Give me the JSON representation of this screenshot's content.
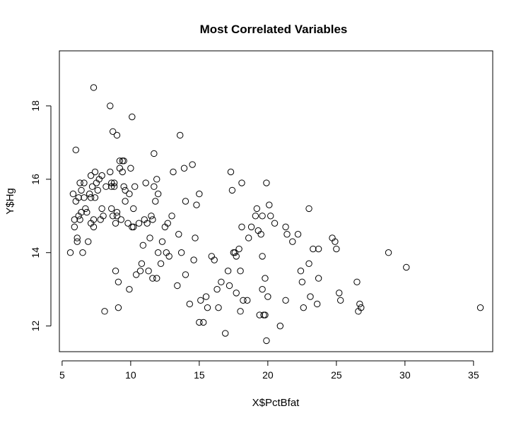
{
  "chart_data": {
    "type": "scatter",
    "title": "Most Correlated Variables",
    "xlabel": "X$PctBfat",
    "ylabel": "Y$Hg",
    "xlim": [
      4.8,
      36.4
    ],
    "ylim": [
      11.3,
      19.5
    ],
    "xticks": [
      5,
      10,
      15,
      20,
      25,
      30,
      35
    ],
    "yticks": [
      12,
      14,
      16,
      18
    ],
    "grid": false,
    "legend": "none",
    "marker": "open-circle",
    "color": "#000000",
    "points": [
      [
        5.6,
        14.0
      ],
      [
        5.8,
        15.6
      ],
      [
        5.9,
        14.9
      ],
      [
        5.9,
        14.7
      ],
      [
        6.0,
        16.8
      ],
      [
        6.0,
        15.4
      ],
      [
        6.1,
        14.4
      ],
      [
        6.1,
        14.3
      ],
      [
        6.2,
        15.0
      ],
      [
        6.2,
        15.5
      ],
      [
        6.3,
        15.9
      ],
      [
        6.3,
        14.9
      ],
      [
        6.4,
        15.7
      ],
      [
        6.4,
        15.1
      ],
      [
        6.5,
        14.0
      ],
      [
        6.6,
        15.5
      ],
      [
        6.6,
        15.9
      ],
      [
        6.7,
        15.2
      ],
      [
        6.8,
        15.1
      ],
      [
        6.9,
        14.3
      ],
      [
        7.0,
        15.6
      ],
      [
        7.1,
        14.8
      ],
      [
        7.1,
        15.5
      ],
      [
        7.1,
        16.1
      ],
      [
        7.2,
        15.8
      ],
      [
        7.3,
        14.9
      ],
      [
        7.3,
        14.7
      ],
      [
        7.4,
        16.2
      ],
      [
        7.4,
        15.5
      ],
      [
        7.5,
        15.9
      ],
      [
        7.6,
        15.7
      ],
      [
        7.7,
        16.0
      ],
      [
        7.8,
        14.9
      ],
      [
        7.9,
        15.2
      ],
      [
        7.9,
        16.1
      ],
      [
        8.0,
        15.0
      ],
      [
        8.1,
        12.4
      ],
      [
        8.2,
        15.8
      ],
      [
        7.3,
        18.5
      ],
      [
        8.5,
        18.0
      ],
      [
        8.5,
        16.2
      ],
      [
        8.6,
        15.2
      ],
      [
        8.6,
        15.9
      ],
      [
        8.6,
        15.8
      ],
      [
        8.7,
        15.0
      ],
      [
        8.7,
        17.3
      ],
      [
        8.8,
        15.9
      ],
      [
        8.8,
        15.8
      ],
      [
        8.9,
        14.8
      ],
      [
        8.9,
        13.5
      ],
      [
        9.0,
        17.2
      ],
      [
        9.0,
        15.1
      ],
      [
        9.0,
        15.0
      ],
      [
        9.1,
        13.2
      ],
      [
        9.1,
        12.5
      ],
      [
        9.2,
        16.3
      ],
      [
        9.2,
        16.5
      ],
      [
        9.3,
        14.9
      ],
      [
        9.4,
        16.5
      ],
      [
        9.4,
        16.2
      ],
      [
        9.5,
        16.5
      ],
      [
        9.5,
        15.8
      ],
      [
        9.6,
        15.4
      ],
      [
        9.6,
        15.7
      ],
      [
        9.8,
        14.8
      ],
      [
        9.9,
        13.0
      ],
      [
        9.9,
        15.6
      ],
      [
        10.0,
        16.3
      ],
      [
        10.1,
        14.7
      ],
      [
        10.1,
        17.7
      ],
      [
        10.2,
        14.7
      ],
      [
        10.2,
        15.2
      ],
      [
        10.3,
        15.8
      ],
      [
        10.4,
        13.4
      ],
      [
        10.6,
        14.8
      ],
      [
        10.7,
        13.5
      ],
      [
        10.8,
        13.7
      ],
      [
        10.9,
        14.2
      ],
      [
        11.0,
        14.9
      ],
      [
        11.1,
        15.9
      ],
      [
        11.2,
        14.8
      ],
      [
        11.3,
        13.5
      ],
      [
        11.4,
        14.4
      ],
      [
        11.5,
        15.0
      ],
      [
        11.6,
        13.3
      ],
      [
        11.6,
        14.9
      ],
      [
        11.7,
        15.8
      ],
      [
        11.7,
        16.7
      ],
      [
        11.8,
        15.4
      ],
      [
        11.9,
        16.0
      ],
      [
        11.9,
        13.3
      ],
      [
        12.0,
        14.0
      ],
      [
        12.0,
        15.6
      ],
      [
        12.2,
        13.7
      ],
      [
        12.3,
        14.3
      ],
      [
        12.5,
        14.7
      ],
      [
        12.6,
        14.0
      ],
      [
        12.7,
        14.8
      ],
      [
        12.8,
        13.9
      ],
      [
        13.0,
        15.0
      ],
      [
        13.1,
        16.2
      ],
      [
        13.4,
        13.1
      ],
      [
        13.5,
        14.5
      ],
      [
        13.6,
        17.2
      ],
      [
        13.7,
        14.0
      ],
      [
        13.9,
        16.3
      ],
      [
        14.0,
        13.4
      ],
      [
        14.0,
        15.4
      ],
      [
        14.3,
        12.6
      ],
      [
        14.5,
        16.4
      ],
      [
        14.6,
        13.8
      ],
      [
        14.7,
        14.4
      ],
      [
        14.8,
        15.3
      ],
      [
        15.0,
        12.1
      ],
      [
        15.0,
        15.6
      ],
      [
        15.1,
        12.7
      ],
      [
        15.3,
        12.1
      ],
      [
        15.5,
        12.8
      ],
      [
        15.6,
        12.5
      ],
      [
        15.9,
        13.9
      ],
      [
        16.1,
        13.8
      ],
      [
        16.3,
        13.0
      ],
      [
        16.4,
        12.5
      ],
      [
        16.6,
        13.2
      ],
      [
        16.9,
        11.8
      ],
      [
        17.1,
        13.5
      ],
      [
        17.2,
        13.1
      ],
      [
        17.3,
        16.2
      ],
      [
        17.4,
        15.7
      ],
      [
        17.5,
        14.0
      ],
      [
        17.6,
        14.0
      ],
      [
        17.7,
        12.9
      ],
      [
        17.7,
        13.9
      ],
      [
        17.9,
        14.1
      ],
      [
        18.0,
        12.4
      ],
      [
        18.0,
        13.5
      ],
      [
        18.1,
        14.7
      ],
      [
        18.1,
        15.9
      ],
      [
        18.2,
        12.7
      ],
      [
        18.5,
        12.7
      ],
      [
        18.6,
        14.4
      ],
      [
        18.8,
        14.7
      ],
      [
        19.1,
        15.0
      ],
      [
        19.2,
        15.2
      ],
      [
        19.3,
        14.6
      ],
      [
        19.4,
        12.3
      ],
      [
        19.5,
        14.5
      ],
      [
        19.6,
        15.0
      ],
      [
        19.6,
        13.0
      ],
      [
        19.6,
        13.9
      ],
      [
        19.7,
        12.3
      ],
      [
        19.8,
        12.3
      ],
      [
        19.8,
        13.3
      ],
      [
        19.9,
        11.6
      ],
      [
        19.9,
        15.9
      ],
      [
        20.0,
        12.8
      ],
      [
        20.1,
        15.3
      ],
      [
        20.2,
        15.0
      ],
      [
        20.5,
        14.8
      ],
      [
        20.9,
        12.0
      ],
      [
        21.3,
        12.7
      ],
      [
        21.3,
        14.7
      ],
      [
        21.4,
        14.5
      ],
      [
        21.8,
        14.3
      ],
      [
        22.2,
        14.5
      ],
      [
        22.4,
        13.5
      ],
      [
        22.5,
        13.2
      ],
      [
        22.6,
        12.5
      ],
      [
        23.0,
        13.7
      ],
      [
        23.0,
        15.2
      ],
      [
        23.1,
        12.8
      ],
      [
        23.3,
        14.1
      ],
      [
        23.6,
        12.6
      ],
      [
        23.7,
        14.1
      ],
      [
        23.7,
        13.3
      ],
      [
        24.7,
        14.4
      ],
      [
        24.9,
        14.3
      ],
      [
        25.0,
        14.1
      ],
      [
        25.2,
        12.9
      ],
      [
        25.3,
        12.7
      ],
      [
        26.5,
        13.2
      ],
      [
        26.6,
        12.4
      ],
      [
        26.7,
        12.6
      ],
      [
        26.8,
        12.5
      ],
      [
        28.8,
        14.0
      ],
      [
        30.1,
        13.6
      ],
      [
        35.5,
        12.5
      ]
    ]
  }
}
